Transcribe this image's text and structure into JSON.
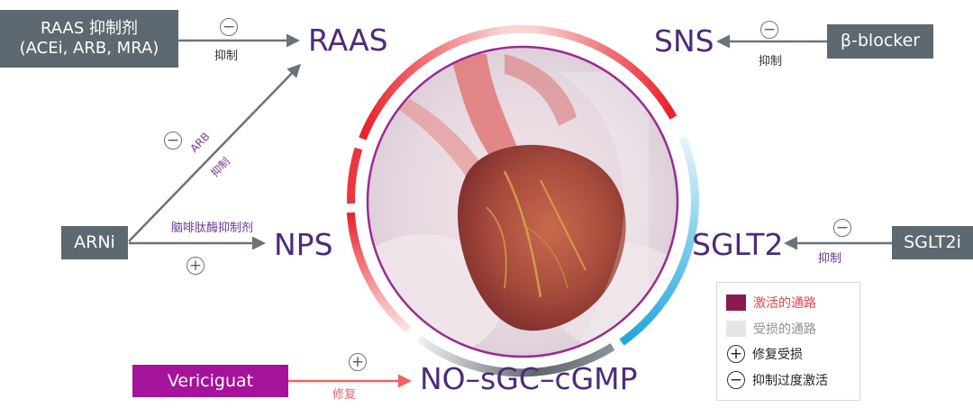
{
  "nodes": {
    "raas": "RAAS",
    "sns": "SNS",
    "nps": "NPS",
    "sglt2": "SGLT2",
    "no_sgc": "NO–sGC–cGMP"
  },
  "drugs": {
    "raas_inhibitor_line1": "RAAS 抑制剂",
    "raas_inhibitor_line2": "(ACEi, ARB, MRA)",
    "beta_blocker": "β-blocker",
    "arni": "ARNi",
    "sglt2i": "SGLT2i",
    "vericiguat": "Vericiguat"
  },
  "arrow_labels": {
    "raas_inhibit": "抑制",
    "beta_inhibit": "抑制",
    "arb": "ARB",
    "arb_inhibit": "抑制",
    "neprilysin": "脑啡肽酶抑制剂",
    "sglt2_inhibit": "抑制",
    "vericiguat_repair": "修复"
  },
  "signs": {
    "minus": "−",
    "plus": "+"
  },
  "legend": {
    "activated": "激活的通路",
    "damaged": "受损的通路",
    "repair": "修复受损",
    "inhibit": "抑制过度激活"
  },
  "colors": {
    "activated": "#8b1a4f",
    "damaged": "#e6e6e6",
    "node_text": "#4e2a7a",
    "drug_box": "#5d6870",
    "vericiguat_box": "#a6139b",
    "arrow_gray": "#6a737a",
    "arrow_red": "#ef6466",
    "ring_red": "#e8202a",
    "ring_blue": "#2aa9df",
    "ring_gray": "#5f676e",
    "inner_ring": "#9b2a8f"
  }
}
